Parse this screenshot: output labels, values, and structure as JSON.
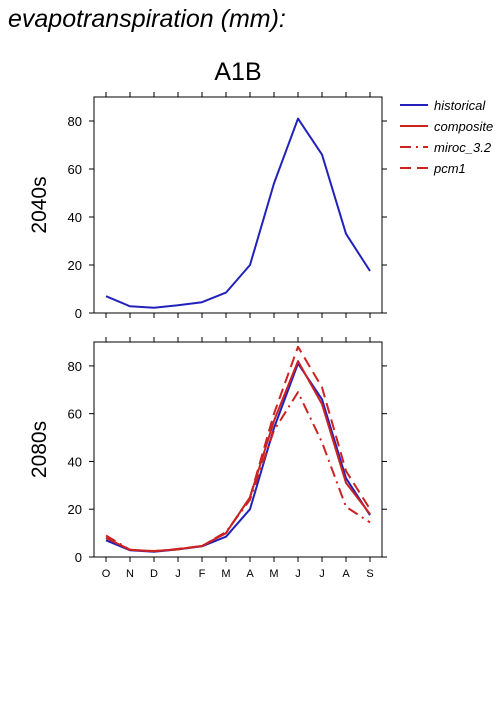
{
  "page": {
    "title": "evapotranspiration (mm):"
  },
  "colors": {
    "historical": "#2222bb",
    "projection": "#cc2222"
  },
  "chart_data": [
    {
      "type": "line",
      "title": "A1B",
      "ylabel": "2040s",
      "xlabel": "",
      "categories": [
        "O",
        "N",
        "D",
        "J",
        "F",
        "M",
        "A",
        "M",
        "J",
        "J",
        "A",
        "S"
      ],
      "ylim": [
        0,
        90
      ],
      "yticks": [
        0,
        20,
        40,
        60,
        80
      ],
      "grid": false,
      "series": [
        {
          "name": "historical",
          "style": "solid",
          "color": "#2222bb",
          "values": [
            7,
            2.8,
            2.2,
            3.2,
            4.5,
            8.5,
            20,
            54,
            81,
            66,
            33,
            17.5
          ]
        }
      ]
    },
    {
      "type": "line",
      "title": "",
      "ylabel": "2080s",
      "xlabel": "",
      "categories": [
        "O",
        "N",
        "D",
        "J",
        "F",
        "M",
        "A",
        "M",
        "J",
        "J",
        "A",
        "S"
      ],
      "ylim": [
        0,
        90
      ],
      "yticks": [
        0,
        20,
        40,
        60,
        80
      ],
      "grid": false,
      "series": [
        {
          "name": "historical",
          "style": "solid",
          "color": "#2222bb",
          "values": [
            7,
            2.8,
            2.2,
            3.2,
            4.5,
            8.5,
            20,
            54,
            81,
            66,
            33,
            17.5
          ]
        },
        {
          "name": "composite",
          "style": "solid",
          "color": "#cc2222",
          "values": [
            8,
            3,
            2.4,
            3.3,
            4.6,
            10,
            25,
            57,
            82,
            64,
            31,
            18
          ]
        },
        {
          "name": "miroc_3.2",
          "style": "dashdot",
          "color": "#cc2222",
          "values": [
            9,
            3,
            2.5,
            3.2,
            4.6,
            10.5,
            24,
            53,
            69,
            48,
            21,
            14.5
          ]
        },
        {
          "name": "pcm1",
          "style": "dash",
          "color": "#cc2222",
          "values": [
            8,
            3,
            2.4,
            3.4,
            4.6,
            10,
            25,
            60,
            88,
            71,
            36,
            20
          ]
        }
      ]
    }
  ],
  "legend": {
    "placement": "top-right",
    "entries": [
      {
        "name": "historical",
        "style": "solid",
        "color": "#2222bb"
      },
      {
        "name": "composite",
        "style": "solid",
        "color": "#cc2222"
      },
      {
        "name": "miroc_3.2",
        "style": "dashdot",
        "color": "#cc2222"
      },
      {
        "name": "pcm1",
        "style": "dash",
        "color": "#cc2222"
      }
    ]
  }
}
